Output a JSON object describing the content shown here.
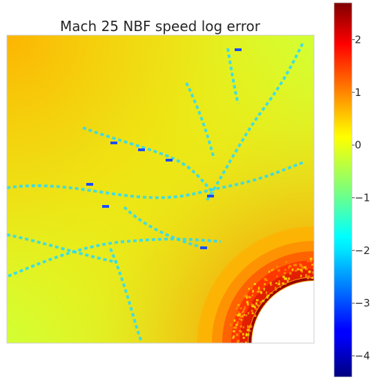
{
  "chart_data": {
    "type": "heatmap",
    "title": "Mach 25 NBF speed log error",
    "colormap": "jet",
    "grid": false,
    "axis_ticks_visible": false,
    "colorbar": {
      "placement": "right",
      "range": [
        -4.4,
        2.7
      ],
      "ticks": [
        {
          "value": 2,
          "label": "2"
        },
        {
          "value": 1,
          "label": "1"
        },
        {
          "value": 0,
          "label": "0"
        },
        {
          "value": -1,
          "label": "−1"
        },
        {
          "value": -2,
          "label": "−2"
        },
        {
          "value": -3,
          "label": "−3"
        },
        {
          "value": -4,
          "label": "−4"
        }
      ]
    },
    "field": {
      "background_value": 0.1,
      "upper_left_value": 0.65,
      "lower_left_value": 0.15,
      "shock_layer_value": 1.8,
      "body_shape": "quarter-circle at lower-right corner (excluded region, white)",
      "low_error_streak_value": -1.9
    }
  }
}
